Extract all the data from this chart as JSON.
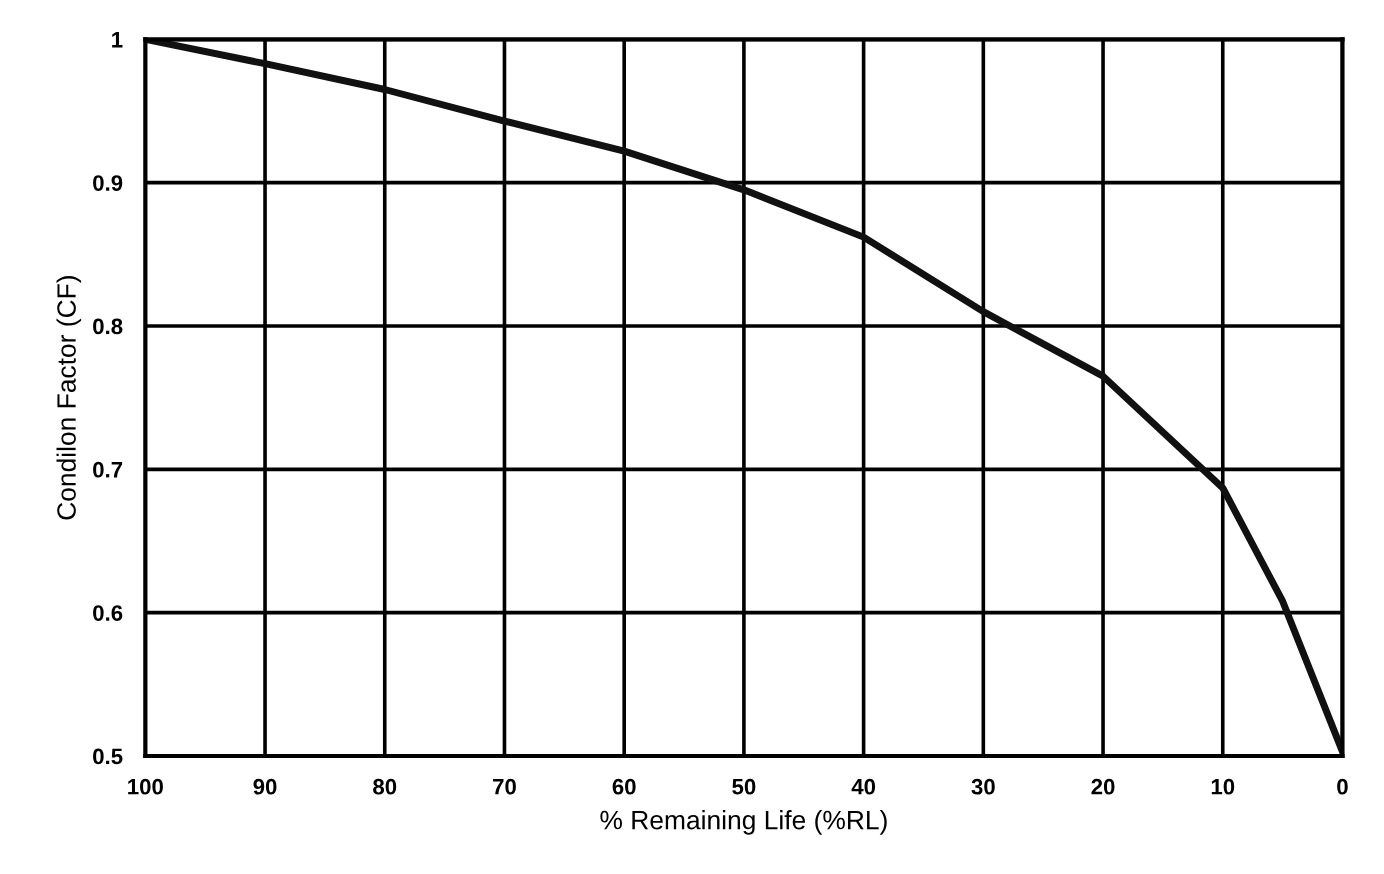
{
  "chart_data": {
    "type": "line",
    "xlabel": "% Remaining Life (%RL)",
    "ylabel": "Condilon Factor (CF)",
    "x": [
      100,
      90,
      80,
      70,
      60,
      50,
      40,
      30,
      20,
      10,
      5,
      0
    ],
    "series": [
      {
        "color": "#111111",
        "values": [
          1.0,
          0.983,
          0.965,
          0.943,
          0.922,
          0.895,
          0.862,
          0.81,
          0.765,
          0.687,
          0.608,
          0.503
        ]
      }
    ],
    "xlim": [
      100,
      0
    ],
    "xticks": [
      100,
      90,
      80,
      70,
      60,
      50,
      40,
      30,
      20,
      10,
      0
    ],
    "ylim": [
      0.5,
      1
    ],
    "yticks": [
      0.5,
      0.6,
      0.7,
      0.8,
      0.9,
      1
    ],
    "grid": true,
    "marker": "none",
    "line_style": "solid",
    "legend": false
  }
}
